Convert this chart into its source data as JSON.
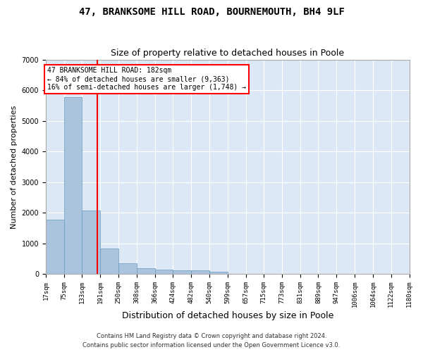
{
  "title_line1": "47, BRANKSOME HILL ROAD, BOURNEMOUTH, BH4 9LF",
  "title_line2": "Size of property relative to detached houses in Poole",
  "xlabel": "Distribution of detached houses by size in Poole",
  "ylabel": "Number of detached properties",
  "bar_color": "#aac4de",
  "bar_edge_color": "#6699bb",
  "vline_x": 182,
  "vline_color": "red",
  "annotation_line1": "47 BRANKSOME HILL ROAD: 182sqm",
  "annotation_line2": "← 84% of detached houses are smaller (9,363)",
  "annotation_line3": "16% of semi-detached houses are larger (1,748) →",
  "annotation_box_color": "red",
  "footnote1": "Contains HM Land Registry data © Crown copyright and database right 2024.",
  "footnote2": "Contains public sector information licensed under the Open Government Licence v3.0.",
  "bin_edges": [
    17,
    75,
    133,
    191,
    250,
    308,
    366,
    424,
    482,
    540,
    599,
    657,
    715,
    773,
    831,
    889,
    947,
    1006,
    1064,
    1122,
    1180
  ],
  "bin_heights": [
    1780,
    5780,
    2060,
    820,
    345,
    195,
    130,
    115,
    115,
    80,
    0,
    0,
    0,
    0,
    0,
    0,
    0,
    0,
    0,
    0
  ],
  "ylim": [
    0,
    7000
  ],
  "xlim": [
    17,
    1180
  ],
  "background_color": "#dce8f5",
  "grid_color": "#ffffff",
  "title_fontsize": 10,
  "subtitle_fontsize": 9,
  "axis_label_fontsize": 8,
  "tick_fontsize": 6.5
}
